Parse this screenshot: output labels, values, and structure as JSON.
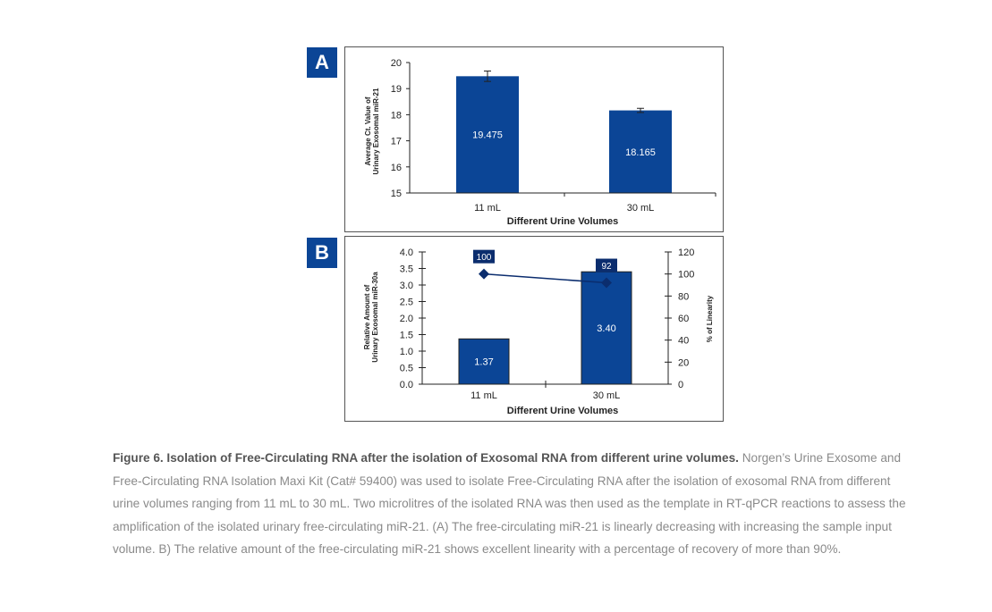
{
  "panels": {
    "a_label": "A",
    "b_label": "B"
  },
  "chart_data": [
    {
      "type": "bar",
      "panel": "A",
      "categories": [
        "11 mL",
        "30 mL"
      ],
      "values": [
        19.475,
        18.165
      ],
      "value_labels": [
        "19.475",
        "18.165"
      ],
      "errors": [
        0.2,
        0.08
      ],
      "ylim": [
        15,
        20
      ],
      "yticks": [
        15,
        16,
        17,
        18,
        19,
        20
      ],
      "ylabel_line1": "Average Ct. Value of",
      "ylabel_line2": "Urinary Exosomal miR-21",
      "xlabel": "Different Urine Volumes",
      "bar_color": "#0b4596"
    },
    {
      "type": "bar+line",
      "panel": "B",
      "categories": [
        "11 mL",
        "30 mL"
      ],
      "bar_values": [
        1.37,
        3.4
      ],
      "bar_labels": [
        "1.37",
        "3.40"
      ],
      "line_values": [
        100,
        92
      ],
      "line_labels": [
        "100",
        "92"
      ],
      "ylim": [
        0,
        4
      ],
      "yticks": [
        "0.0",
        "0.5",
        "1.0",
        "1.5",
        "2.0",
        "2.5",
        "3.0",
        "3.5",
        "4.0"
      ],
      "y2lim": [
        0,
        120
      ],
      "y2ticks": [
        "0",
        "20",
        "40",
        "60",
        "80",
        "100",
        "120"
      ],
      "ylabel_line1": "Relative Amount of",
      "ylabel_line2": "Urinary Exosomal miR-30a",
      "y2label": "% of Linearity",
      "xlabel": "Different Urine Volumes",
      "bar_color": "#0b4596",
      "line_color": "#0b2d6e"
    }
  ],
  "caption": {
    "bold": "Figure 6. Isolation of Free-Circulating RNA after the isolation of Exosomal RNA from different urine volumes.",
    "text": " Norgen’s Urine Exosome and Free-Circulating RNA Isolation Maxi Kit (Cat# 59400) was used to isolate Free-Circulating RNA after the isolation of exosomal RNA from different urine volumes ranging from 11 mL to 30 mL. Two microlitres of the isolated RNA was then used as the template in RT-qPCR reactions to assess the amplification of the isolated urinary free-circulating miR-21. (A) The free-circulating miR-21 is linearly decreasing with increasing the sample input volume. B) The relative amount of the free-circulating miR-21 shows excellent linearity with a percentage of recovery of more than 90%."
  }
}
